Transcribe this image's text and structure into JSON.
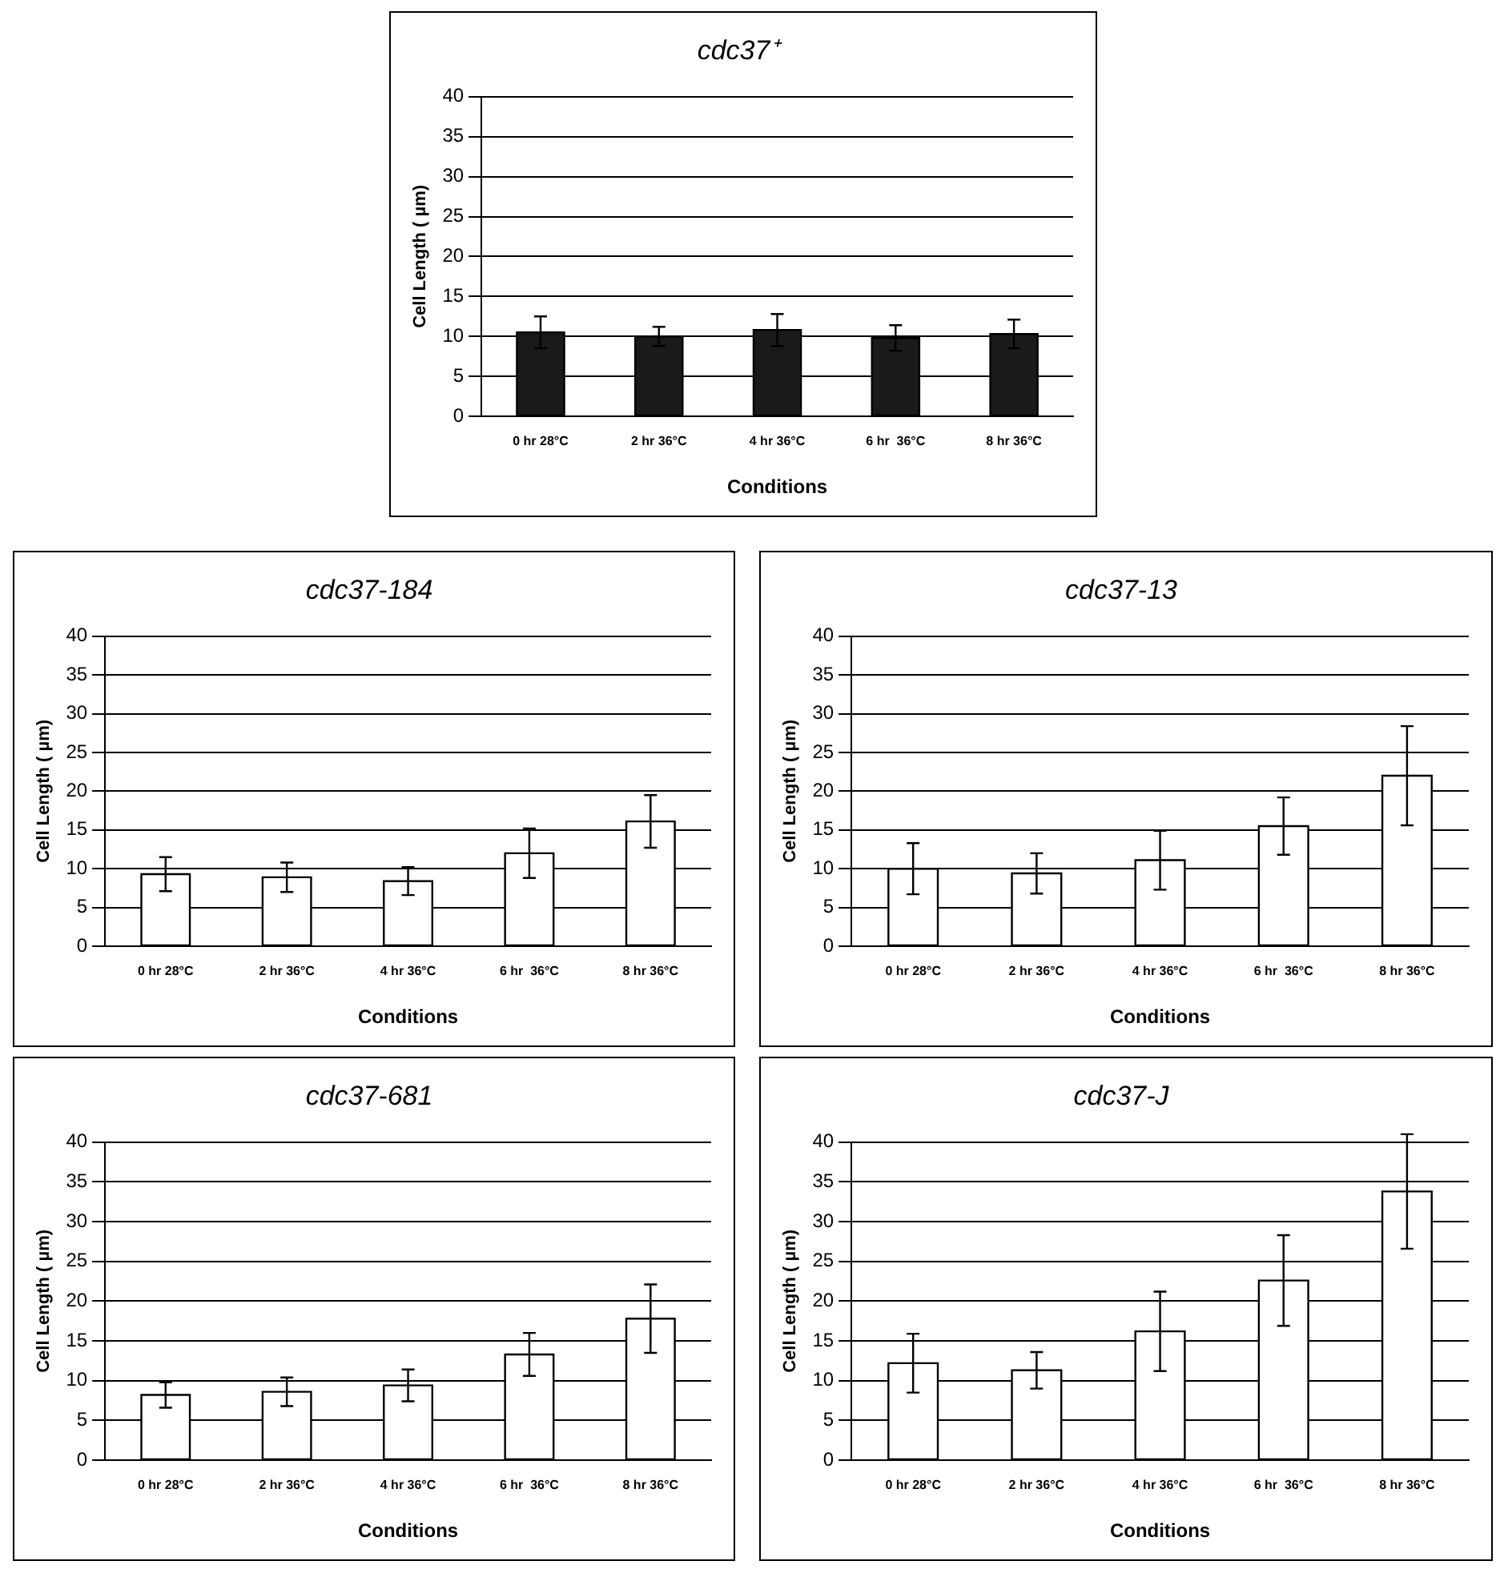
{
  "chart_data": [
    {
      "type": "bar",
      "title": "cdc37⁺",
      "xlabel": "Conditions",
      "ylabel": "Cell Length ( µm)",
      "categories": [
        "0 hr 28°C",
        "2 hr 36°C",
        "4 hr 36°C",
        "6 hr  36°C",
        "8 hr 36°C"
      ],
      "values": [
        10.5,
        10,
        10.8,
        9.8,
        10.3
      ],
      "errors": [
        2,
        1.2,
        2,
        1.6,
        1.8
      ],
      "color": "#1a1a1a",
      "ylim": [
        0,
        40
      ],
      "yticks": [
        0,
        5,
        10,
        15,
        20,
        25,
        30,
        35,
        40
      ],
      "grid": "y"
    },
    {
      "type": "bar",
      "title": "cdc37-184",
      "xlabel": "Conditions",
      "ylabel": "Cell Length ( µm)",
      "categories": [
        "0 hr 28°C",
        "2 hr 36°C",
        "4 hr 36°C",
        "6 hr  36°C",
        "8 hr 36°C"
      ],
      "values": [
        9.3,
        8.9,
        8.4,
        12,
        16.1
      ],
      "errors": [
        2.2,
        1.9,
        1.8,
        3.2,
        3.4
      ],
      "color": "#ffffff",
      "ylim": [
        0,
        40
      ],
      "yticks": [
        0,
        5,
        10,
        15,
        20,
        25,
        30,
        35,
        40
      ],
      "grid": "y"
    },
    {
      "type": "bar",
      "title": "cdc37-13",
      "xlabel": "Conditions",
      "ylabel": "Cell Length ( µm)",
      "categories": [
        "0 hr 28°C",
        "2 hr 36°C",
        "4 hr 36°C",
        "6 hr  36°C",
        "8 hr 36°C"
      ],
      "values": [
        10,
        9.4,
        11.1,
        15.5,
        22
      ],
      "errors": [
        3.3,
        2.6,
        3.8,
        3.7,
        6.4
      ],
      "color": "#ffffff",
      "ylim": [
        0,
        40
      ],
      "yticks": [
        0,
        5,
        10,
        15,
        20,
        25,
        30,
        35,
        40
      ],
      "grid": "y"
    },
    {
      "type": "bar",
      "title": "cdc37-681",
      "xlabel": "Conditions",
      "ylabel": "Cell Length ( µm)",
      "categories": [
        "0 hr 28°C",
        "2 hr 36°C",
        "4 hr 36°C",
        "6 hr  36°C",
        "8 hr 36°C"
      ],
      "values": [
        8.2,
        8.6,
        9.4,
        13.3,
        17.8
      ],
      "errors": [
        1.6,
        1.8,
        2,
        2.7,
        4.3
      ],
      "color": "#ffffff",
      "ylim": [
        0,
        40
      ],
      "yticks": [
        0,
        5,
        10,
        15,
        20,
        25,
        30,
        35,
        40
      ],
      "grid": "y"
    },
    {
      "type": "bar",
      "title": "cdc37-J",
      "xlabel": "Conditions",
      "ylabel": "Cell Length ( µm)",
      "categories": [
        "0 hr 28°C",
        "2 hr 36°C",
        "4 hr 36°C",
        "6 hr  36°C",
        "8 hr 36°C"
      ],
      "values": [
        12.2,
        11.3,
        16.2,
        22.6,
        33.8
      ],
      "errors": [
        3.7,
        2.3,
        5,
        5.7,
        7.2
      ],
      "color": "#ffffff",
      "ylim": [
        0,
        40
      ],
      "yticks": [
        0,
        5,
        10,
        15,
        20,
        25,
        30,
        35,
        40
      ],
      "grid": "y"
    }
  ]
}
